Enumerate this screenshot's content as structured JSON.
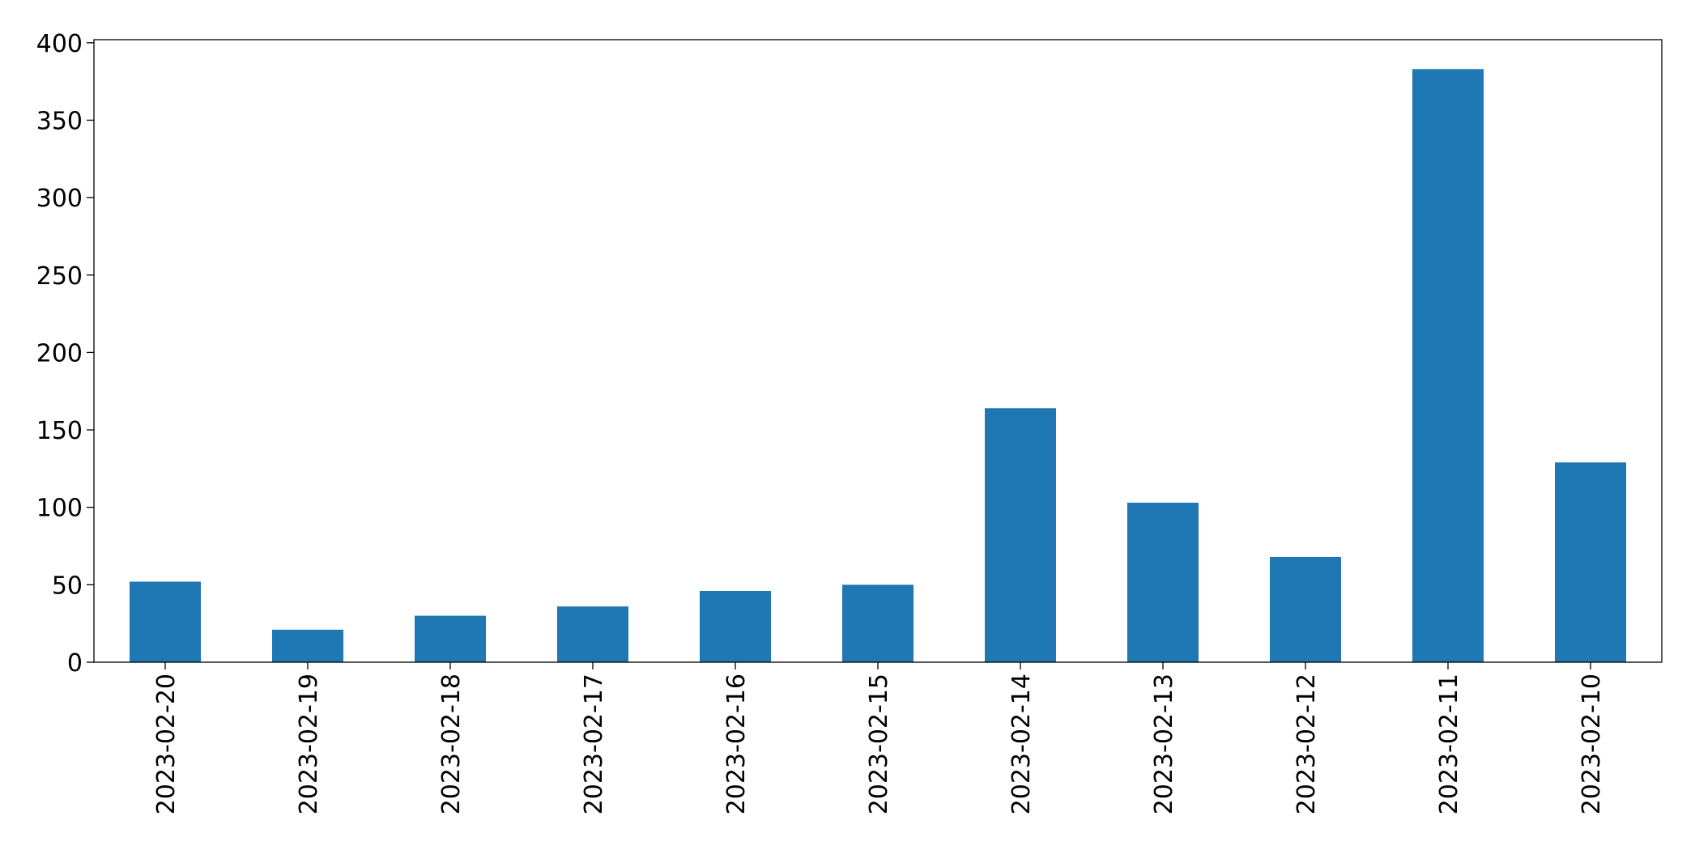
{
  "chart_data": {
    "type": "bar",
    "categories": [
      "2023-02-20",
      "2023-02-19",
      "2023-02-18",
      "2023-02-17",
      "2023-02-16",
      "2023-02-15",
      "2023-02-14",
      "2023-02-13",
      "2023-02-12",
      "2023-02-11",
      "2023-02-10"
    ],
    "values": [
      52,
      21,
      30,
      36,
      46,
      50,
      164,
      103,
      68,
      383,
      129
    ],
    "color": "#1f77b4",
    "ylim": [
      0,
      402
    ],
    "yticks": [
      0,
      50,
      100,
      150,
      200,
      250,
      300,
      350,
      400
    ],
    "grid": false
  }
}
